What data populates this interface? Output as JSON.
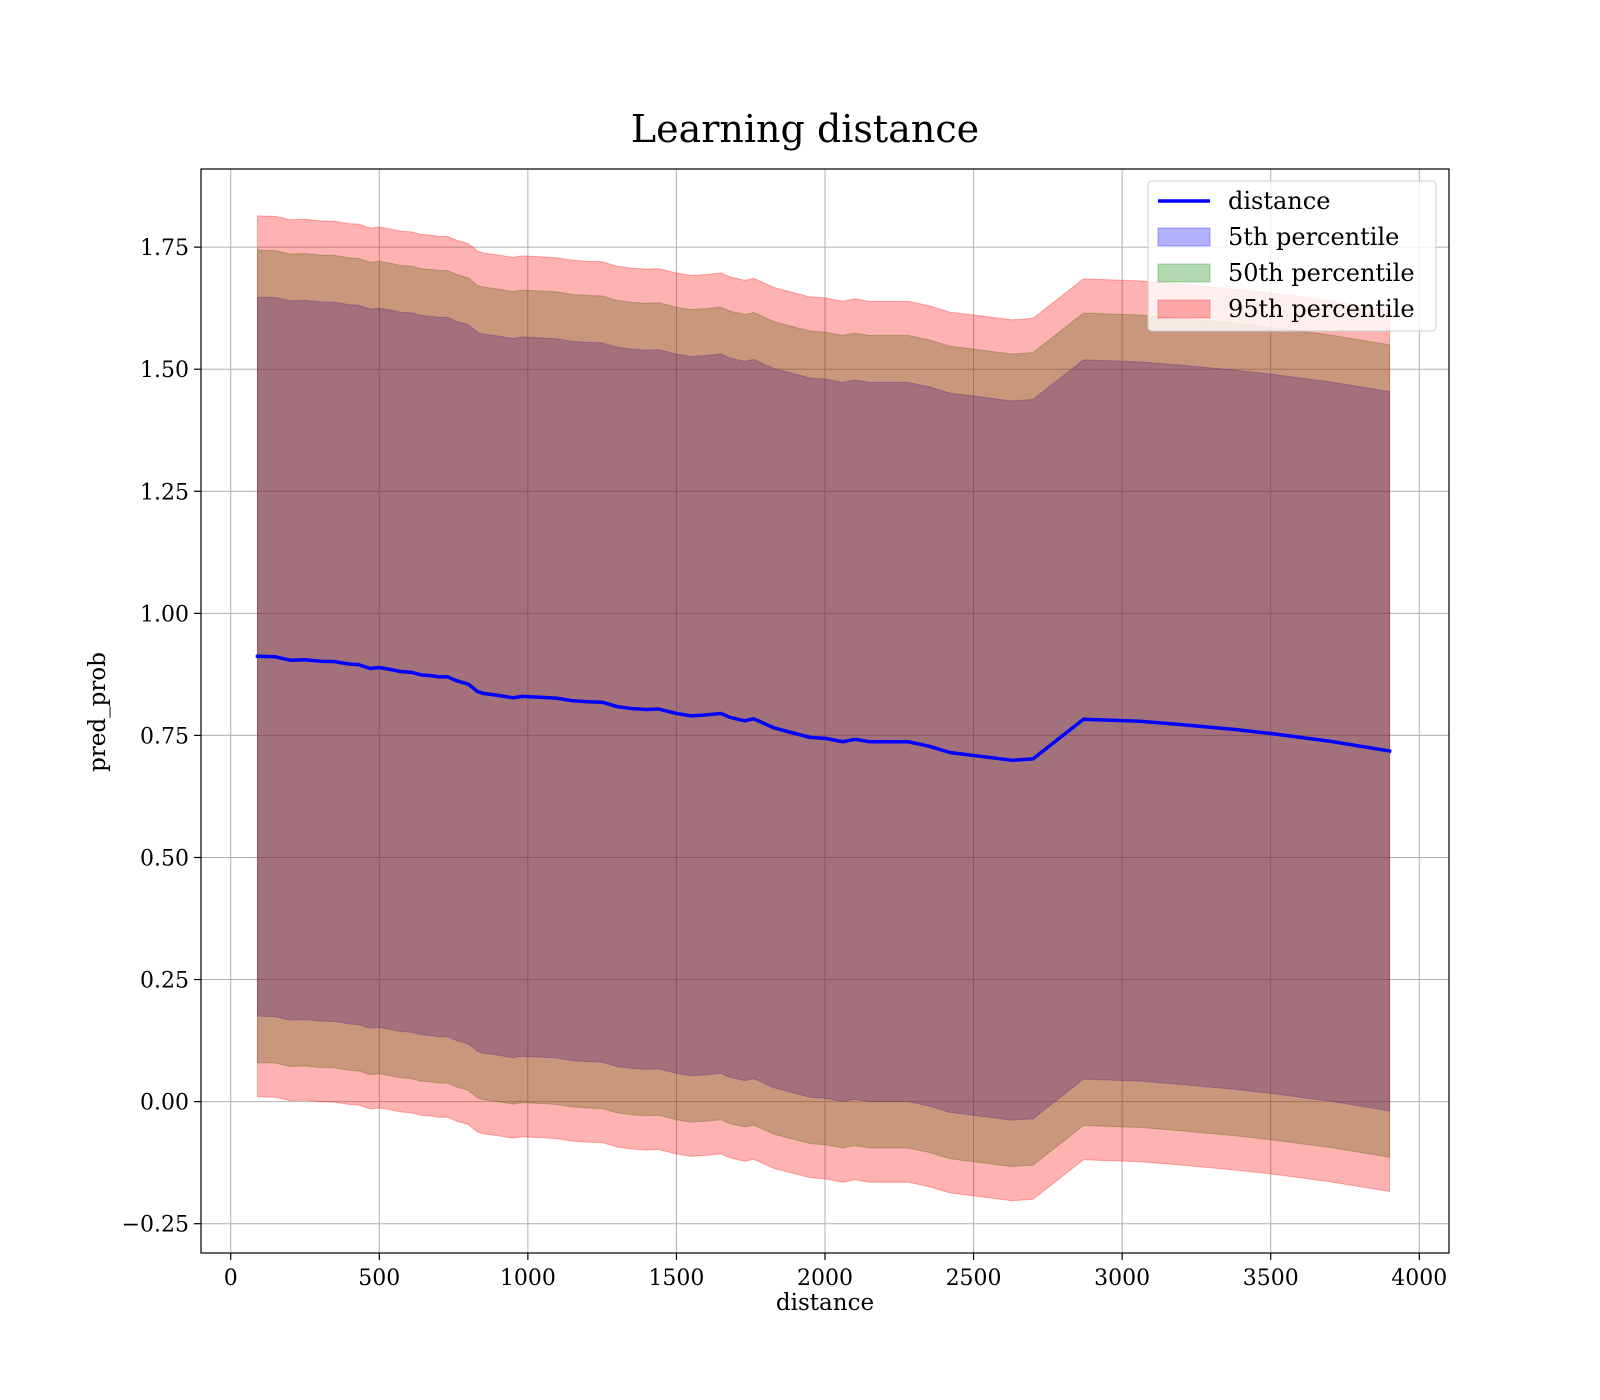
{
  "chart_data": {
    "type": "line",
    "title": "Learning distance",
    "xlabel": "distance",
    "ylabel": "pred_prob",
    "xlim": [
      -100,
      4100
    ],
    "ylim": [
      -0.31,
      1.91
    ],
    "x_ticks": [
      0,
      500,
      1000,
      1500,
      2000,
      2500,
      3000,
      3500,
      4000
    ],
    "y_ticks": [
      -0.25,
      0.0,
      0.25,
      0.5,
      0.75,
      1.0,
      1.25,
      1.5,
      1.75
    ],
    "x_tick_labels": [
      "0",
      "500",
      "1000",
      "1500",
      "2000",
      "2500",
      "3000",
      "3500",
      "4000"
    ],
    "y_tick_labels": [
      "−0.25",
      "0.00",
      "0.25",
      "0.50",
      "0.75",
      "1.00",
      "1.25",
      "1.50",
      "1.75"
    ],
    "grid": true,
    "legend_position": "top-right",
    "x": [
      90,
      150,
      200,
      250,
      300,
      350,
      400,
      430,
      470,
      500,
      530,
      570,
      610,
      640,
      680,
      700,
      730,
      760,
      800,
      830,
      850,
      900,
      950,
      980,
      1050,
      1100,
      1150,
      1200,
      1250,
      1300,
      1350,
      1400,
      1440,
      1500,
      1550,
      1600,
      1650,
      1680,
      1730,
      1760,
      1830,
      1880,
      1950,
      2000,
      2060,
      2100,
      2150,
      2200,
      2280,
      2350,
      2420,
      2500,
      2630,
      2700,
      2870,
      3060,
      3200,
      3380,
      3500,
      3600,
      3700,
      3900
    ],
    "series": [
      {
        "name": "distance",
        "type": "line",
        "color": "#0000ff",
        "values": [
          0.912,
          0.911,
          0.904,
          0.905,
          0.902,
          0.901,
          0.896,
          0.895,
          0.887,
          0.889,
          0.886,
          0.881,
          0.879,
          0.874,
          0.872,
          0.87,
          0.87,
          0.862,
          0.855,
          0.84,
          0.836,
          0.832,
          0.827,
          0.83,
          0.828,
          0.826,
          0.821,
          0.819,
          0.818,
          0.809,
          0.805,
          0.803,
          0.804,
          0.795,
          0.79,
          0.792,
          0.795,
          0.787,
          0.78,
          0.784,
          0.765,
          0.757,
          0.746,
          0.744,
          0.737,
          0.742,
          0.737,
          0.737,
          0.737,
          0.728,
          0.715,
          0.709,
          0.699,
          0.702,
          0.783,
          0.779,
          0.772,
          0.762,
          0.754,
          0.746,
          0.738,
          0.718
        ]
      },
      {
        "name": "5th percentile",
        "type": "band",
        "color": "#0000ff",
        "lower": [
          0.175,
          0.174,
          0.167,
          0.168,
          0.165,
          0.164,
          0.159,
          0.158,
          0.15,
          0.152,
          0.149,
          0.144,
          0.142,
          0.137,
          0.135,
          0.133,
          0.133,
          0.125,
          0.118,
          0.103,
          0.099,
          0.095,
          0.09,
          0.093,
          0.091,
          0.089,
          0.084,
          0.082,
          0.081,
          0.072,
          0.068,
          0.066,
          0.067,
          0.058,
          0.053,
          0.055,
          0.058,
          0.05,
          0.043,
          0.047,
          0.028,
          0.02,
          0.009,
          0.007,
          0.0,
          0.005,
          0.0,
          0.0,
          0.0,
          -0.009,
          -0.022,
          -0.028,
          -0.038,
          -0.035,
          0.046,
          0.042,
          0.035,
          0.025,
          0.017,
          0.009,
          0.001,
          -0.019
        ],
        "upper": [
          1.647,
          1.647,
          1.64,
          1.641,
          1.638,
          1.637,
          1.632,
          1.631,
          1.623,
          1.625,
          1.622,
          1.617,
          1.615,
          1.61,
          1.608,
          1.606,
          1.606,
          1.598,
          1.591,
          1.576,
          1.572,
          1.568,
          1.563,
          1.566,
          1.564,
          1.562,
          1.557,
          1.555,
          1.554,
          1.545,
          1.541,
          1.539,
          1.54,
          1.531,
          1.526,
          1.528,
          1.531,
          1.523,
          1.516,
          1.52,
          1.501,
          1.493,
          1.482,
          1.48,
          1.473,
          1.478,
          1.473,
          1.473,
          1.473,
          1.464,
          1.451,
          1.445,
          1.435,
          1.438,
          1.519,
          1.515,
          1.508,
          1.498,
          1.49,
          1.482,
          1.474,
          1.454
        ]
      },
      {
        "name": "50th percentile",
        "type": "band",
        "color": "#008000",
        "lower": [
          0.08,
          0.079,
          0.072,
          0.073,
          0.07,
          0.069,
          0.064,
          0.063,
          0.055,
          0.057,
          0.054,
          0.049,
          0.047,
          0.042,
          0.04,
          0.038,
          0.038,
          0.03,
          0.023,
          0.008,
          0.004,
          0.0,
          -0.005,
          -0.002,
          -0.004,
          -0.006,
          -0.011,
          -0.013,
          -0.014,
          -0.023,
          -0.027,
          -0.029,
          -0.028,
          -0.037,
          -0.042,
          -0.04,
          -0.037,
          -0.045,
          -0.052,
          -0.048,
          -0.067,
          -0.075,
          -0.086,
          -0.088,
          -0.095,
          -0.09,
          -0.095,
          -0.095,
          -0.095,
          -0.104,
          -0.117,
          -0.123,
          -0.133,
          -0.13,
          -0.049,
          -0.053,
          -0.06,
          -0.07,
          -0.078,
          -0.086,
          -0.094,
          -0.114
        ],
        "upper": [
          1.744,
          1.743,
          1.736,
          1.737,
          1.734,
          1.733,
          1.728,
          1.727,
          1.719,
          1.721,
          1.718,
          1.713,
          1.711,
          1.706,
          1.704,
          1.702,
          1.702,
          1.694,
          1.687,
          1.672,
          1.668,
          1.664,
          1.659,
          1.662,
          1.66,
          1.658,
          1.653,
          1.651,
          1.65,
          1.641,
          1.637,
          1.635,
          1.636,
          1.627,
          1.622,
          1.624,
          1.627,
          1.619,
          1.612,
          1.616,
          1.597,
          1.589,
          1.578,
          1.576,
          1.569,
          1.574,
          1.569,
          1.569,
          1.569,
          1.56,
          1.547,
          1.541,
          1.531,
          1.534,
          1.615,
          1.611,
          1.604,
          1.594,
          1.586,
          1.578,
          1.57,
          1.55
        ]
      },
      {
        "name": "95th percentile",
        "type": "band",
        "color": "#ff0000",
        "lower": [
          0.01,
          0.009,
          0.002,
          0.003,
          0.0,
          -0.001,
          -0.006,
          -0.007,
          -0.015,
          -0.013,
          -0.016,
          -0.021,
          -0.023,
          -0.028,
          -0.03,
          -0.032,
          -0.032,
          -0.04,
          -0.047,
          -0.062,
          -0.066,
          -0.07,
          -0.075,
          -0.072,
          -0.074,
          -0.076,
          -0.081,
          -0.083,
          -0.084,
          -0.093,
          -0.097,
          -0.099,
          -0.098,
          -0.107,
          -0.112,
          -0.11,
          -0.107,
          -0.115,
          -0.122,
          -0.118,
          -0.137,
          -0.145,
          -0.156,
          -0.158,
          -0.165,
          -0.16,
          -0.165,
          -0.165,
          -0.165,
          -0.174,
          -0.187,
          -0.193,
          -0.203,
          -0.2,
          -0.119,
          -0.123,
          -0.13,
          -0.14,
          -0.148,
          -0.156,
          -0.164,
          -0.184
        ],
        "upper": [
          1.814,
          1.813,
          1.806,
          1.807,
          1.804,
          1.803,
          1.798,
          1.797,
          1.789,
          1.791,
          1.788,
          1.783,
          1.781,
          1.776,
          1.774,
          1.772,
          1.772,
          1.764,
          1.757,
          1.742,
          1.738,
          1.734,
          1.729,
          1.732,
          1.73,
          1.728,
          1.723,
          1.721,
          1.72,
          1.711,
          1.707,
          1.705,
          1.706,
          1.697,
          1.692,
          1.694,
          1.697,
          1.689,
          1.682,
          1.686,
          1.667,
          1.659,
          1.648,
          1.646,
          1.639,
          1.644,
          1.639,
          1.639,
          1.639,
          1.63,
          1.617,
          1.611,
          1.601,
          1.604,
          1.685,
          1.681,
          1.674,
          1.664,
          1.656,
          1.648,
          1.64,
          1.62
        ]
      }
    ]
  }
}
